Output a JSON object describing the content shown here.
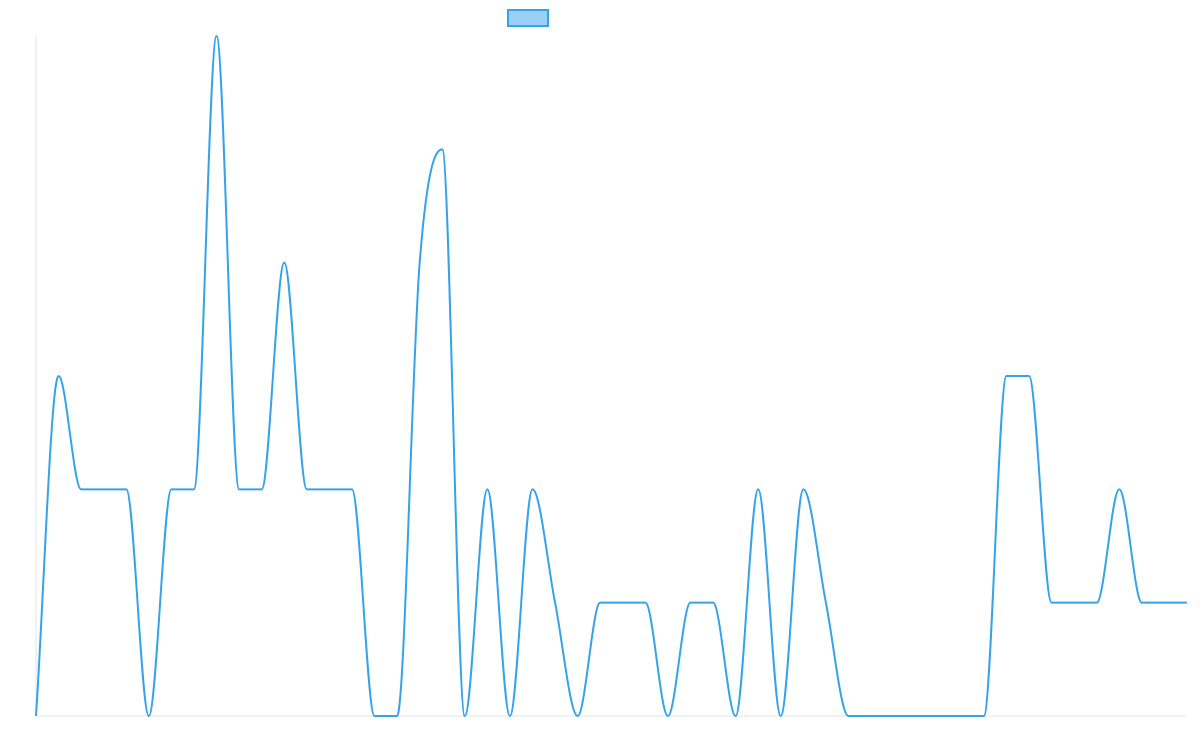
{
  "chart_data": {
    "type": "line",
    "title": "",
    "xlabel": "",
    "ylabel": "",
    "legend": {
      "placement": "top-center",
      "label": ""
    },
    "colors": {
      "line": "#36a2eb",
      "legend_fill": "#9ad0f5",
      "axis": "#e5e5e5"
    },
    "grid": false,
    "ylim": [
      0,
      6
    ],
    "x": [
      0,
      1,
      2,
      3,
      4,
      5,
      6,
      7,
      8,
      9,
      10,
      11,
      12,
      13,
      14,
      15,
      16,
      17,
      18,
      19,
      20,
      21,
      22,
      23,
      24,
      25,
      26,
      27,
      28,
      29,
      30,
      31,
      32,
      33,
      34,
      35,
      36,
      37,
      38,
      39,
      40,
      41,
      42,
      43,
      44,
      45,
      46,
      47,
      48,
      49,
      50,
      51
    ],
    "series": [
      {
        "name": "",
        "values": [
          0,
          3,
          2,
          2,
          2,
          0,
          2,
          2,
          6,
          2,
          2,
          4,
          2,
          2,
          2,
          0,
          0,
          4,
          5,
          0,
          2,
          0,
          2,
          1,
          0,
          1,
          1,
          1,
          0,
          1,
          1,
          0,
          2,
          0,
          2,
          1,
          0,
          0,
          0,
          0,
          0,
          0,
          0,
          3,
          3,
          1,
          1,
          1,
          2,
          1,
          1,
          1
        ]
      }
    ]
  }
}
